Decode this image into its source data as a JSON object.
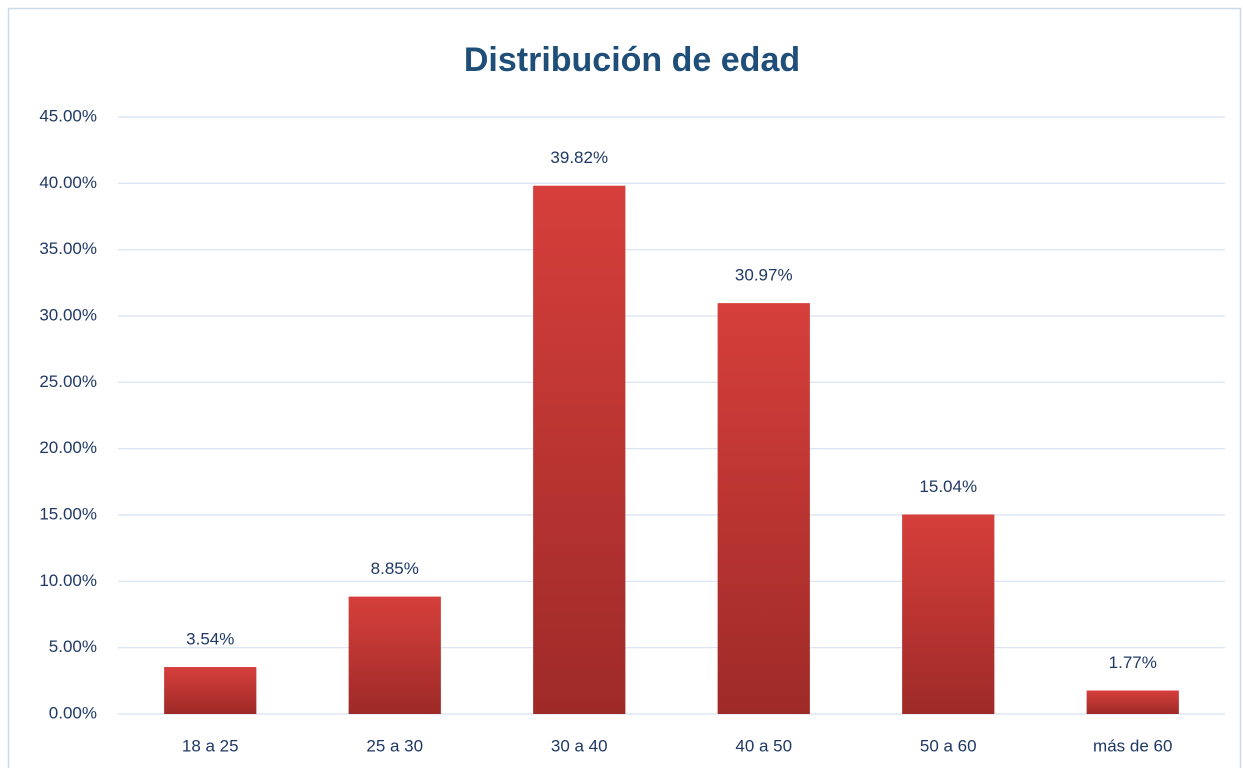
{
  "chart_data": {
    "type": "bar",
    "title": "Distribución de edad",
    "categories": [
      "18 a 25",
      "25 a 30",
      "30 a 40",
      "40 a 50",
      "50 a 60",
      "más de 60"
    ],
    "values": [
      3.54,
      8.85,
      39.82,
      30.97,
      15.04,
      1.77
    ],
    "value_labels": [
      "3.54%",
      "8.85%",
      "39.82%",
      "30.97%",
      "15.04%",
      "1.77%"
    ],
    "color": "#c8373a",
    "ylim": [
      0,
      45
    ],
    "yticks": [
      {
        "value": 0,
        "label": "0.00%"
      },
      {
        "value": 5,
        "label": "5.00%"
      },
      {
        "value": 10,
        "label": "10.00%"
      },
      {
        "value": 15,
        "label": "15.00%"
      },
      {
        "value": 20,
        "label": "20.00%"
      },
      {
        "value": 25,
        "label": "25.00%"
      },
      {
        "value": 30,
        "label": "30.00%"
      },
      {
        "value": 35,
        "label": "35.00%"
      },
      {
        "value": 40,
        "label": "40.00%"
      },
      {
        "value": 45,
        "label": "45.00%"
      }
    ],
    "grid": true
  }
}
